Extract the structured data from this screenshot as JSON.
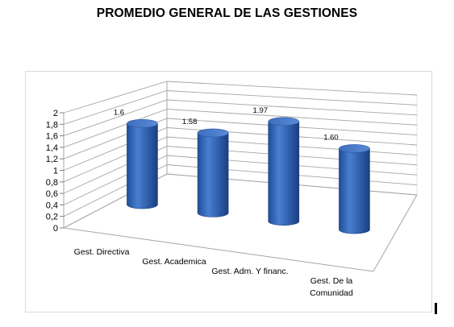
{
  "page": {
    "title": "PROMEDIO GENERAL DE LAS GESTIONES"
  },
  "chart_data": {
    "type": "bar",
    "style": "3d-cylinder",
    "title": "PROMEDIO GENERAL DE LAS GESTIONES",
    "categories": [
      "Gest. Directiva",
      "Gest. Academica",
      "Gest. Adm. Y financ.",
      "Gest. De la Comunidad"
    ],
    "values": [
      1.6,
      1.58,
      1.97,
      1.6
    ],
    "data_labels": [
      "1.6",
      "1.58",
      "1.97",
      "1.60"
    ],
    "ylim": [
      0,
      2
    ],
    "yticks": [
      "0",
      "0,2",
      "0,4",
      "0,6",
      "0,8",
      "1",
      "1,2",
      "1,4",
      "1,6",
      "1,8",
      "2"
    ],
    "grid": true,
    "legend": "none",
    "colors": {
      "bar": "#4472c4",
      "grid": "#a6a6a6"
    }
  }
}
